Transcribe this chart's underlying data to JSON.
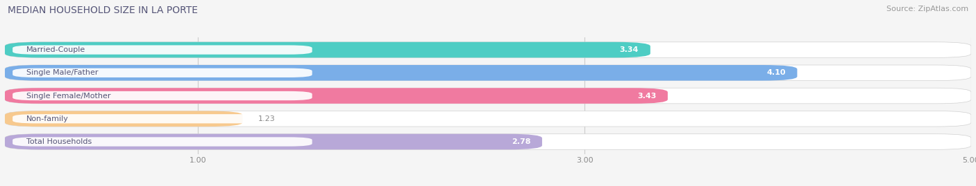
{
  "title": "MEDIAN HOUSEHOLD SIZE IN LA PORTE",
  "source": "Source: ZipAtlas.com",
  "categories": [
    "Married-Couple",
    "Single Male/Father",
    "Single Female/Mother",
    "Non-family",
    "Total Households"
  ],
  "values": [
    3.34,
    4.1,
    3.43,
    1.23,
    2.78
  ],
  "bar_colors": [
    "#4ecdc4",
    "#7aaee8",
    "#f07aa0",
    "#f7c98e",
    "#b8a8d8"
  ],
  "label_bg_color": "#ffffff",
  "bar_bg_color": "#e8e8e8",
  "page_bg_color": "#f5f5f5",
  "xlim_min": 0,
  "xlim_max": 5.0,
  "xticks": [
    1.0,
    3.0,
    5.0
  ],
  "title_fontsize": 10,
  "source_fontsize": 8,
  "label_fontsize": 8,
  "value_fontsize": 8,
  "label_color": "#555577",
  "value_color_inside": "#ffffff",
  "value_color_outside": "#888888",
  "grid_color": "#cccccc"
}
